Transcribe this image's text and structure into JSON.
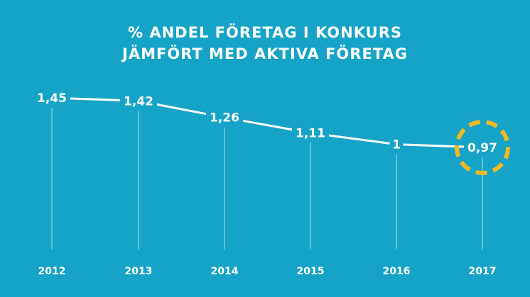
{
  "header": {
    "title_line1": "% ANDEL FÖRETAG I KONKURS",
    "title_line2": "JÄMFÖRT MED AKTIVA FÖRETAG"
  },
  "colors": {
    "background": "#15a3c7",
    "line": "#ffffff",
    "highlight_ring": "#f5b923"
  },
  "chart_data": {
    "type": "line",
    "title": "% ANDEL FÖRETAG I KONKURS JÄMFÖRT MED AKTIVA FÖRETAG",
    "categories": [
      "2012",
      "2013",
      "2014",
      "2015",
      "2016",
      "2017"
    ],
    "values": [
      1.45,
      1.42,
      1.26,
      1.11,
      1.0,
      0.97
    ],
    "value_labels": [
      "1,45",
      "1,42",
      "1,26",
      "1,11",
      "1",
      "0,97"
    ],
    "highlighted_category": "2017",
    "grid": false,
    "legend": "none"
  }
}
